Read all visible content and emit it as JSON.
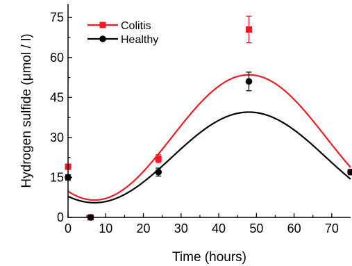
{
  "chart_data": {
    "type": "scatter",
    "title": "",
    "xlabel": "Time (hours)",
    "ylabel": "Hydrogen sulfide (μmol / l)",
    "xlim": [
      0,
      75
    ],
    "ylim": [
      0,
      80
    ],
    "xticks": [
      0,
      10,
      20,
      30,
      40,
      50,
      60,
      70
    ],
    "yticks": [
      0,
      15,
      30,
      45,
      60,
      75
    ],
    "x_tick_labels": [
      "0",
      "10",
      "20",
      "30",
      "40",
      "50",
      "60",
      "70"
    ],
    "y_tick_labels": [
      "0",
      "15",
      "30",
      "45",
      "60",
      "75"
    ],
    "grid": false,
    "legend_position": "top-left",
    "series": [
      {
        "name": "Colitis",
        "color": "#ee1c25",
        "marker": "square",
        "points": [
          {
            "x": 0,
            "y": 19,
            "err": 1
          },
          {
            "x": 6,
            "y": 0,
            "err": 0
          },
          {
            "x": 24,
            "y": 22,
            "err": 1.5
          },
          {
            "x": 48,
            "y": 70.5,
            "err": 5
          },
          {
            "x": 75,
            "y": 17,
            "err": 0.5
          }
        ],
        "fit": {
          "offset": 30,
          "amplitude": 23.5,
          "peak_x": 48,
          "period": 82
        }
      },
      {
        "name": "Healthy",
        "color": "#000000",
        "marker": "circle",
        "points": [
          {
            "x": 0,
            "y": 15,
            "err": 1
          },
          {
            "x": 6,
            "y": 0,
            "err": 0
          },
          {
            "x": 24,
            "y": 17,
            "err": 1.5
          },
          {
            "x": 48,
            "y": 51,
            "err": 3.5
          },
          {
            "x": 75,
            "y": 17,
            "err": 0.5
          }
        ],
        "fit": {
          "offset": 22.5,
          "amplitude": 17,
          "peak_x": 48,
          "period": 82
        }
      }
    ]
  }
}
